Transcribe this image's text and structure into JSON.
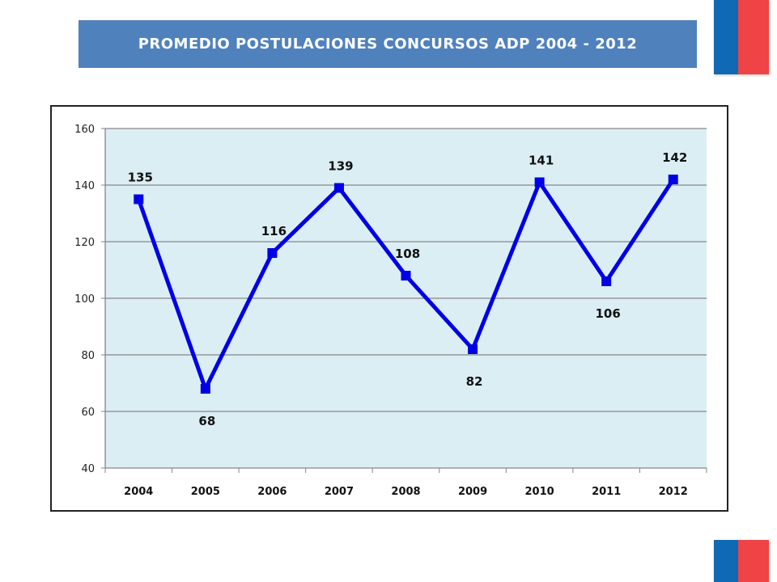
{
  "slide": {
    "title": "PROMEDIO POSTULACIONES CONCURSOS ADP 2004 - 2012"
  },
  "colors": {
    "title_bg": "#4f81bd",
    "plot_bg": "#dbeef4",
    "series": "#0000e6",
    "flag_blue": "#0f69b4",
    "flag_red": "#ef4346"
  },
  "chart_data": {
    "type": "line",
    "title": "",
    "xlabel": "",
    "ylabel": "",
    "categories": [
      "2004",
      "2005",
      "2006",
      "2007",
      "2008",
      "2009",
      "2010",
      "2011",
      "2012"
    ],
    "series": [
      {
        "values": [
          135,
          68,
          116,
          139,
          108,
          82,
          141,
          106,
          142
        ]
      }
    ],
    "data_labels": [
      "135",
      "68",
      "116",
      "139",
      "108",
      "82",
      "141",
      "106",
      "142"
    ],
    "ylim": [
      40,
      160
    ],
    "yticks": [
      40,
      60,
      80,
      100,
      120,
      140,
      160
    ],
    "grid": true,
    "legend": "none"
  }
}
